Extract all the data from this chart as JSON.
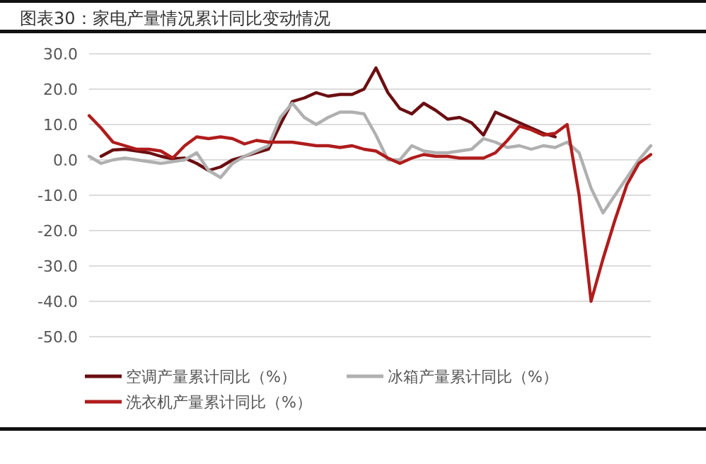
{
  "chart_data": {
    "type": "line",
    "title": "图表30：家电产量情况累计同比变动情况",
    "categories": [
      null,
      null,
      null,
      null,
      null,
      null,
      null,
      null,
      null,
      null,
      null,
      null,
      null,
      null,
      null,
      null,
      null,
      null,
      null,
      null,
      null,
      null,
      null,
      null,
      null,
      null,
      null,
      null,
      null,
      null,
      null,
      null,
      null,
      null,
      null,
      null,
      null,
      null,
      null,
      null,
      null,
      null,
      null,
      null,
      null,
      null,
      null,
      null
    ],
    "series": [
      {
        "name": "空调产量累计同比（%）",
        "color": "#6b0f12",
        "values": [
          null,
          1,
          2.8,
          3,
          2.5,
          2,
          1,
          0.3,
          0.5,
          -1,
          -3,
          -2,
          0,
          1,
          2,
          3,
          10,
          16.5,
          17.5,
          19,
          18,
          18.5,
          18.5,
          20,
          26,
          19,
          14.5,
          13,
          16,
          14,
          11.5,
          12,
          10.5,
          7,
          13.5,
          12,
          10.5,
          9,
          7.5,
          6.5,
          null,
          null,
          null,
          null,
          null,
          null,
          null,
          null
        ]
      },
      {
        "name": "冰箱产量累计同比（%）",
        "color": "#b0b0b0",
        "values": [
          1,
          -1,
          0,
          0.5,
          0,
          -0.5,
          -1,
          -0.5,
          0,
          2,
          -3,
          -5,
          -1,
          1,
          2.5,
          4,
          12,
          16,
          12,
          10,
          12,
          13.5,
          13.5,
          13,
          7,
          0,
          0,
          4,
          2.5,
          2,
          2,
          2.5,
          3,
          6,
          5,
          3.5,
          4,
          3,
          4,
          3.5,
          5,
          2,
          -8,
          -15,
          -10,
          -5,
          0,
          4
        ]
      },
      {
        "name": "洗衣机产量累计同比（%）",
        "color": "#b01c1c",
        "values": [
          12.5,
          9,
          5,
          4,
          3,
          3,
          2.5,
          0.5,
          4,
          6.5,
          6,
          6.5,
          6,
          4.5,
          5.5,
          5,
          5,
          5,
          4.5,
          4,
          4,
          3.5,
          4,
          3,
          2.5,
          0.5,
          -1,
          0.5,
          1.5,
          1,
          1,
          0.5,
          0.5,
          0.5,
          2,
          5.5,
          9.5,
          8.5,
          7,
          7.5,
          10,
          -10,
          -40,
          -28,
          -17,
          -7,
          -1,
          1.5
        ]
      }
    ],
    "ylim": [
      -50,
      30
    ],
    "yticks": [
      {
        "value": 30,
        "label": "30.0"
      },
      {
        "value": 20,
        "label": "20.0"
      },
      {
        "value": 10,
        "label": "10.0"
      },
      {
        "value": 0,
        "label": "0.0"
      },
      {
        "value": -10,
        "label": "-10.0"
      },
      {
        "value": -20,
        "label": "-20.0"
      },
      {
        "value": -30,
        "label": "-30.0"
      },
      {
        "value": -40,
        "label": "-40.0"
      },
      {
        "value": -50,
        "label": "-50.0"
      }
    ],
    "grid": "y",
    "legend": "bottom",
    "marker": "none",
    "line_style": "solid"
  }
}
